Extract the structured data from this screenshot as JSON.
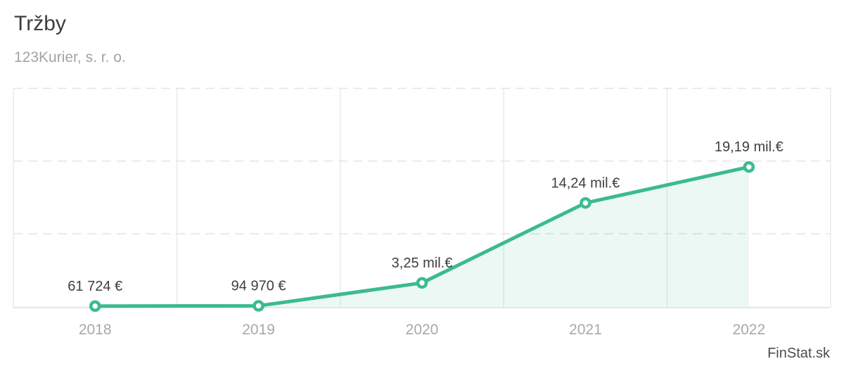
{
  "header": {
    "title": "Tržby",
    "subtitle": "123Kurier, s. r. o."
  },
  "watermark": {
    "label": "FinStat.sk"
  },
  "colors": {
    "line": "#3cbb8d",
    "marker_fill": "#ffffff",
    "area_fill": "#3cbb8d",
    "area_opacity": "0.1",
    "grid_vertical": "#e7ebed",
    "grid_dashed": "#e4e4e4",
    "axis_bottom": "#e3e6e6",
    "title": "#3d3d3d",
    "subtitle": "#a3a3a3",
    "tick_label": "#a8a8a8",
    "point_label": "#3f3f3f",
    "watermark": "#4c4c4c"
  },
  "chart_data": {
    "type": "area",
    "title": "Tržby",
    "subtitle": "123Kurier, s. r. o.",
    "categories": [
      "2018",
      "2019",
      "2020",
      "2021",
      "2022"
    ],
    "series": [
      {
        "name": "Tržby",
        "values": [
          61724,
          94970,
          3250000,
          14240000,
          19190000
        ]
      }
    ],
    "point_labels": [
      "61 724 €",
      "94 970 €",
      "3,25 mil.€",
      "14,24 mil.€",
      "19,19 mil.€"
    ],
    "xlabel": "",
    "ylabel": "",
    "ylim": [
      0,
      30000000
    ],
    "grid_step": 10000000,
    "grid": "on",
    "legend_position": "none"
  }
}
